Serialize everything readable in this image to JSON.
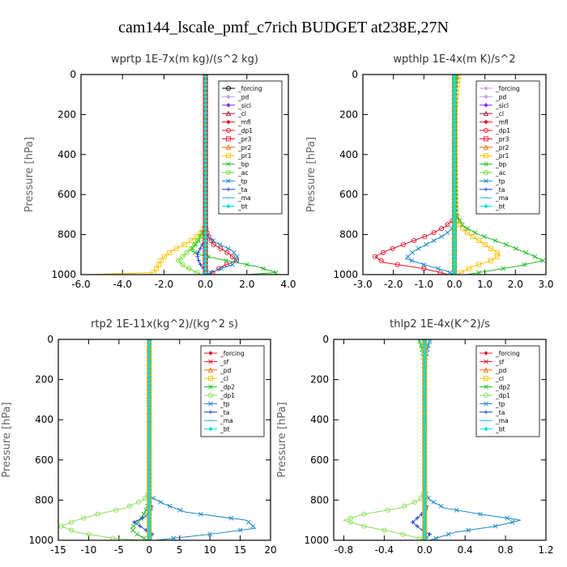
{
  "figure": {
    "title": "cam144_lscale_pmf_c7rich  BUDGET at238E,27N"
  },
  "colors": {
    "black": "#000000",
    "red": "#e8102a",
    "orange": "#ff6a00",
    "yellow": "#ffc000",
    "green": "#22bb22",
    "lime": "#66dd22",
    "lightgreen": "#88dd55",
    "blue": "#1a3fd6",
    "teal": "#1a88c8",
    "lavender": "#c8a0e8",
    "purple": "#8a2be2",
    "darkred": "#aa1030",
    "cyan": "#00e0e0",
    "skyblue": "#30b0f0"
  },
  "chart_data": [
    {
      "type": "line",
      "title": "wprtp  1E-7x(m kg)/(s^2 kg)",
      "ylabel": "Pressure [hPa]",
      "xlim": [
        -6.0,
        4.0
      ],
      "ylim": [
        1000,
        0
      ],
      "xticks": [
        "-6.0",
        "-4.0",
        "-2.0",
        "0.0",
        "2.0",
        "4.0"
      ],
      "xtick_values": [
        -6,
        -4,
        -2,
        0,
        2,
        4
      ],
      "yticks": [
        "0",
        "200",
        "400",
        "600",
        "800",
        "1000"
      ],
      "ytick_values": [
        0,
        200,
        400,
        600,
        800,
        1000
      ],
      "grid": false,
      "legend_position": "top-right",
      "series": [
        {
          "name": "_forcing",
          "color": "black",
          "marker": "circle",
          "p": [
            0,
            1000
          ],
          "v": [
            0,
            0
          ]
        },
        {
          "name": "_pd",
          "color": "lavender",
          "marker": "diamond",
          "p": [
            0,
            1000
          ],
          "v": [
            0,
            0
          ]
        },
        {
          "name": "_sicl",
          "color": "purple",
          "marker": "diamond",
          "p": [
            0,
            1000
          ],
          "v": [
            0,
            0
          ]
        },
        {
          "name": "_cl",
          "color": "darkred",
          "marker": "triangle",
          "p": [
            0,
            1000
          ],
          "v": [
            0,
            0
          ]
        },
        {
          "name": "_mfl",
          "color": "red",
          "marker": "diamond",
          "p": [
            0,
            1000
          ],
          "v": [
            0,
            0
          ]
        },
        {
          "name": "_dp1",
          "color": "red",
          "marker": "circle",
          "p": [
            0,
            760,
            800,
            850,
            880,
            900,
            930,
            960,
            1000
          ],
          "v": [
            0,
            0,
            0.1,
            0.4,
            0.9,
            1.2,
            1.5,
            0.8,
            0.2
          ]
        },
        {
          "name": "_pr3",
          "color": "red",
          "marker": "square",
          "p": [
            0,
            1000
          ],
          "v": [
            0,
            0
          ]
        },
        {
          "name": "_pr2",
          "color": "orange",
          "marker": "triangle",
          "p": [
            0,
            1000
          ],
          "v": [
            0,
            0
          ]
        },
        {
          "name": "_pr1",
          "color": "yellow",
          "marker": "square",
          "p": [
            0,
            760,
            800,
            840,
            880,
            920,
            960,
            990,
            1000
          ],
          "v": [
            0,
            0,
            -0.3,
            -0.8,
            -1.6,
            -2.1,
            -2.3,
            -2.5,
            -5.6
          ]
        },
        {
          "name": "_bp",
          "color": "green",
          "marker": "x",
          "p": [
            0,
            760,
            800,
            840,
            880,
            900,
            930,
            960,
            990,
            1000
          ],
          "v": [
            0,
            0,
            -0.2,
            -0.4,
            -0.7,
            -0.3,
            1.0,
            2.5,
            3.4,
            2.0
          ]
        },
        {
          "name": "_ac",
          "color": "lime",
          "marker": "circle",
          "p": [
            0,
            780,
            820,
            860,
            900,
            930,
            960,
            1000
          ],
          "v": [
            0,
            0,
            -0.3,
            -0.6,
            -1.0,
            -1.3,
            -1.0,
            -0.2
          ]
        },
        {
          "name": "_tp",
          "color": "teal",
          "marker": "x",
          "p": [
            0,
            800,
            840,
            880,
            920,
            950,
            980,
            1000
          ],
          "v": [
            0,
            0,
            0.5,
            1.3,
            1.6,
            1.3,
            0.5,
            0
          ]
        },
        {
          "name": "_ta",
          "color": "blue",
          "marker": "plus",
          "p": [
            0,
            820,
            860,
            900,
            940,
            970,
            1000
          ],
          "v": [
            0,
            0,
            -0.2,
            -0.4,
            -0.3,
            -0.1,
            0
          ]
        },
        {
          "name": "_ma",
          "color": "skyblue",
          "marker": "dash",
          "p": [
            0,
            1000
          ],
          "v": [
            0,
            0
          ]
        },
        {
          "name": "_bt",
          "color": "cyan",
          "marker": "diamond",
          "p": [
            0,
            1000
          ],
          "v": [
            0,
            0
          ]
        }
      ]
    },
    {
      "type": "line",
      "title": "wpthlp  1E-4x(m K)/s^2",
      "ylabel": "Pressure [hPa]",
      "xlim": [
        -3.0,
        3.0
      ],
      "ylim": [
        1000,
        0
      ],
      "xticks": [
        "-3.0",
        "-2.0",
        "-1.0",
        "0.0",
        "1.0",
        "2.0",
        "3.0"
      ],
      "xtick_values": [
        -3,
        -2,
        -1,
        0,
        1,
        2,
        3
      ],
      "yticks": [
        "0",
        "200",
        "400",
        "600",
        "800",
        "1000"
      ],
      "ytick_values": [
        0,
        200,
        400,
        600,
        800,
        1000
      ],
      "grid": false,
      "legend_position": "top-right",
      "series": [
        {
          "name": "_forcing",
          "color": "lavender",
          "marker": "diamond",
          "p": [
            0,
            1000
          ],
          "v": [
            0,
            0
          ]
        },
        {
          "name": "_pd",
          "color": "lavender",
          "marker": "diamond",
          "p": [
            0,
            1000
          ],
          "v": [
            0,
            0
          ]
        },
        {
          "name": "_sicl",
          "color": "purple",
          "marker": "diamond",
          "p": [
            0,
            1000
          ],
          "v": [
            0,
            0
          ]
        },
        {
          "name": "_cl",
          "color": "darkred",
          "marker": "triangle",
          "p": [
            0,
            1000
          ],
          "v": [
            0,
            0
          ]
        },
        {
          "name": "_mfl",
          "color": "red",
          "marker": "diamond",
          "p": [
            0,
            1000
          ],
          "v": [
            0,
            0
          ]
        },
        {
          "name": "_dp1",
          "color": "red",
          "marker": "circle",
          "p": [
            0,
            720,
            760,
            800,
            840,
            880,
            910,
            940,
            970,
            1000
          ],
          "v": [
            0,
            0,
            -0.3,
            -0.8,
            -1.5,
            -2.2,
            -2.6,
            -2.3,
            -1.0,
            -0.2
          ]
        },
        {
          "name": "_pr3",
          "color": "red",
          "marker": "square",
          "p": [
            0,
            1000
          ],
          "v": [
            0,
            0
          ]
        },
        {
          "name": "_pr2",
          "color": "orange",
          "marker": "triangle",
          "p": [
            0,
            1000
          ],
          "v": [
            0,
            0
          ]
        },
        {
          "name": "_pr1",
          "color": "yellow",
          "marker": "square",
          "p": [
            0,
            40,
            100,
            200,
            400,
            700,
            760,
            800,
            850,
            900,
            930,
            960,
            1000
          ],
          "v": [
            0.15,
            0.1,
            0.05,
            0.02,
            0.02,
            0.05,
            0.2,
            0.5,
            1.0,
            1.5,
            1.2,
            0.6,
            0.1
          ]
        },
        {
          "name": "_bp",
          "color": "green",
          "marker": "x",
          "p": [
            0,
            40,
            100,
            200,
            400,
            700,
            760,
            800,
            850,
            900,
            930,
            960,
            1000
          ],
          "v": [
            0.1,
            0.05,
            0.03,
            0.02,
            0.02,
            0.05,
            0.3,
            0.8,
            1.7,
            2.5,
            2.9,
            2.0,
            0.4
          ]
        },
        {
          "name": "_ac",
          "color": "lime",
          "marker": "circle",
          "p": [
            0,
            1000
          ],
          "v": [
            0,
            0
          ]
        },
        {
          "name": "_tp",
          "color": "teal",
          "marker": "x",
          "p": [
            0,
            760,
            800,
            840,
            880,
            920,
            950,
            980,
            1000
          ],
          "v": [
            0,
            0,
            -0.3,
            -0.8,
            -1.3,
            -1.6,
            -1.0,
            -0.3,
            0
          ]
        },
        {
          "name": "_ta",
          "color": "blue",
          "marker": "plus",
          "p": [
            0,
            1000
          ],
          "v": [
            0,
            0
          ]
        },
        {
          "name": "_ma",
          "color": "skyblue",
          "marker": "dash",
          "p": [
            0,
            1000
          ],
          "v": [
            0,
            0
          ]
        },
        {
          "name": "_bt",
          "color": "cyan",
          "marker": "diamond",
          "p": [
            0,
            1000
          ],
          "v": [
            0,
            0
          ]
        }
      ]
    },
    {
      "type": "line",
      "title": "rtp2  1E-11x(kg^2)/(kg^2 s)",
      "ylabel": "Pressure [hPa]",
      "xlim": [
        -15,
        20
      ],
      "ylim": [
        1000,
        0
      ],
      "xticks": [
        "-15",
        "-10",
        "-5",
        "0",
        "5",
        "10",
        "15",
        "20"
      ],
      "xtick_values": [
        -15,
        -10,
        -5,
        0,
        5,
        10,
        15,
        20
      ],
      "yticks": [
        "0",
        "200",
        "400",
        "600",
        "800",
        "1000"
      ],
      "ytick_values": [
        0,
        200,
        400,
        600,
        800,
        1000
      ],
      "grid": false,
      "legend_position": "top-right",
      "series": [
        {
          "name": "_forcing",
          "color": "red",
          "marker": "diamond",
          "p": [
            0,
            1000
          ],
          "v": [
            0,
            0
          ]
        },
        {
          "name": "_sf",
          "color": "red",
          "marker": "x",
          "p": [
            0,
            1000
          ],
          "v": [
            0,
            0
          ]
        },
        {
          "name": "_pd",
          "color": "orange",
          "marker": "triangle",
          "p": [
            0,
            1000
          ],
          "v": [
            0,
            0
          ]
        },
        {
          "name": "_cl",
          "color": "yellow",
          "marker": "square",
          "p": [
            0,
            1000
          ],
          "v": [
            0,
            0
          ]
        },
        {
          "name": "_dp2",
          "color": "green",
          "marker": "x",
          "p": [
            0,
            800,
            850,
            900,
            940,
            970,
            1000
          ],
          "v": [
            0,
            0,
            -0.5,
            -1.5,
            -3.0,
            -2.0,
            -0.3
          ]
        },
        {
          "name": "_dp1",
          "color": "lightgreen",
          "marker": "circle",
          "p": [
            0,
            760,
            800,
            840,
            870,
            900,
            930,
            960,
            990,
            1000
          ],
          "v": [
            0,
            0,
            -1.0,
            -4.0,
            -8.5,
            -12.0,
            -14.5,
            -12.0,
            -6.0,
            -1.0
          ]
        },
        {
          "name": "_tp",
          "color": "teal",
          "marker": "x",
          "p": [
            0,
            780,
            820,
            860,
            900,
            940,
            970,
            1000
          ],
          "v": [
            0,
            0,
            2.5,
            6.0,
            16.0,
            17.5,
            10.0,
            1.0
          ]
        },
        {
          "name": "_ta",
          "color": "blue",
          "marker": "plus",
          "p": [
            0,
            800,
            840,
            880,
            910,
            940,
            970,
            1000
          ],
          "v": [
            0,
            0,
            0.5,
            -0.5,
            -2.5,
            -1.0,
            0.5,
            0
          ]
        },
        {
          "name": "_ma",
          "color": "skyblue",
          "marker": "dash",
          "p": [
            0,
            1000
          ],
          "v": [
            0,
            0
          ]
        },
        {
          "name": "_bt",
          "color": "cyan",
          "marker": "diamond",
          "p": [
            0,
            1000
          ],
          "v": [
            0,
            0
          ]
        }
      ]
    },
    {
      "type": "line",
      "title": "thlp2  1E-4x(K^2)/s",
      "ylabel": "Pressure [hPa]",
      "xlim": [
        -0.9,
        1.2
      ],
      "ylim": [
        1000,
        0
      ],
      "xticks": [
        "-0.8",
        "-0.4",
        "0.0",
        "0.4",
        "0.8",
        "1.2"
      ],
      "xtick_values": [
        -0.8,
        -0.4,
        0.0,
        0.4,
        0.8,
        1.2
      ],
      "yticks": [
        "0",
        "200",
        "400",
        "600",
        "800",
        "1000"
      ],
      "ytick_values": [
        0,
        200,
        400,
        600,
        800,
        1000
      ],
      "grid": false,
      "legend_position": "top-right",
      "series": [
        {
          "name": "_forcing",
          "color": "red",
          "marker": "diamond",
          "p": [
            0,
            1000
          ],
          "v": [
            0,
            0
          ]
        },
        {
          "name": "_sf",
          "color": "red",
          "marker": "x",
          "p": [
            0,
            1000
          ],
          "v": [
            0,
            0
          ]
        },
        {
          "name": "_pd",
          "color": "orange",
          "marker": "triangle",
          "p": [
            0,
            1000
          ],
          "v": [
            0,
            0
          ]
        },
        {
          "name": "_cl",
          "color": "yellow",
          "marker": "square",
          "p": [
            0,
            1000
          ],
          "v": [
            0,
            0
          ]
        },
        {
          "name": "_dp2",
          "color": "green",
          "marker": "x",
          "p": [
            0,
            20,
            60,
            120,
            1000
          ],
          "v": [
            -0.06,
            -0.04,
            -0.02,
            0,
            0
          ]
        },
        {
          "name": "_dp1",
          "color": "lightgreen",
          "marker": "circle",
          "p": [
            0,
            760,
            800,
            840,
            870,
            900,
            930,
            960,
            990,
            1000
          ],
          "v": [
            0,
            0,
            -0.05,
            -0.25,
            -0.6,
            -0.8,
            -0.6,
            -0.3,
            -0.05,
            0
          ]
        },
        {
          "name": "_tp",
          "color": "teal",
          "marker": "x",
          "p": [
            0,
            20,
            60,
            120,
            760,
            800,
            840,
            870,
            900,
            930,
            960,
            1000
          ],
          "v": [
            0.06,
            0.04,
            0.02,
            0,
            0,
            0.05,
            0.2,
            0.55,
            0.95,
            0.7,
            0.3,
            0.05
          ]
        },
        {
          "name": "_ta",
          "color": "blue",
          "marker": "plus",
          "p": [
            0,
            800,
            840,
            880,
            910,
            940,
            970,
            1000
          ],
          "v": [
            0,
            0,
            0.03,
            -0.05,
            -0.12,
            -0.05,
            0.05,
            0
          ]
        },
        {
          "name": "_ma",
          "color": "skyblue",
          "marker": "dash",
          "p": [
            0,
            1000
          ],
          "v": [
            0,
            0
          ]
        },
        {
          "name": "_bt",
          "color": "cyan",
          "marker": "diamond",
          "p": [
            0,
            1000
          ],
          "v": [
            0,
            0
          ]
        }
      ]
    }
  ]
}
